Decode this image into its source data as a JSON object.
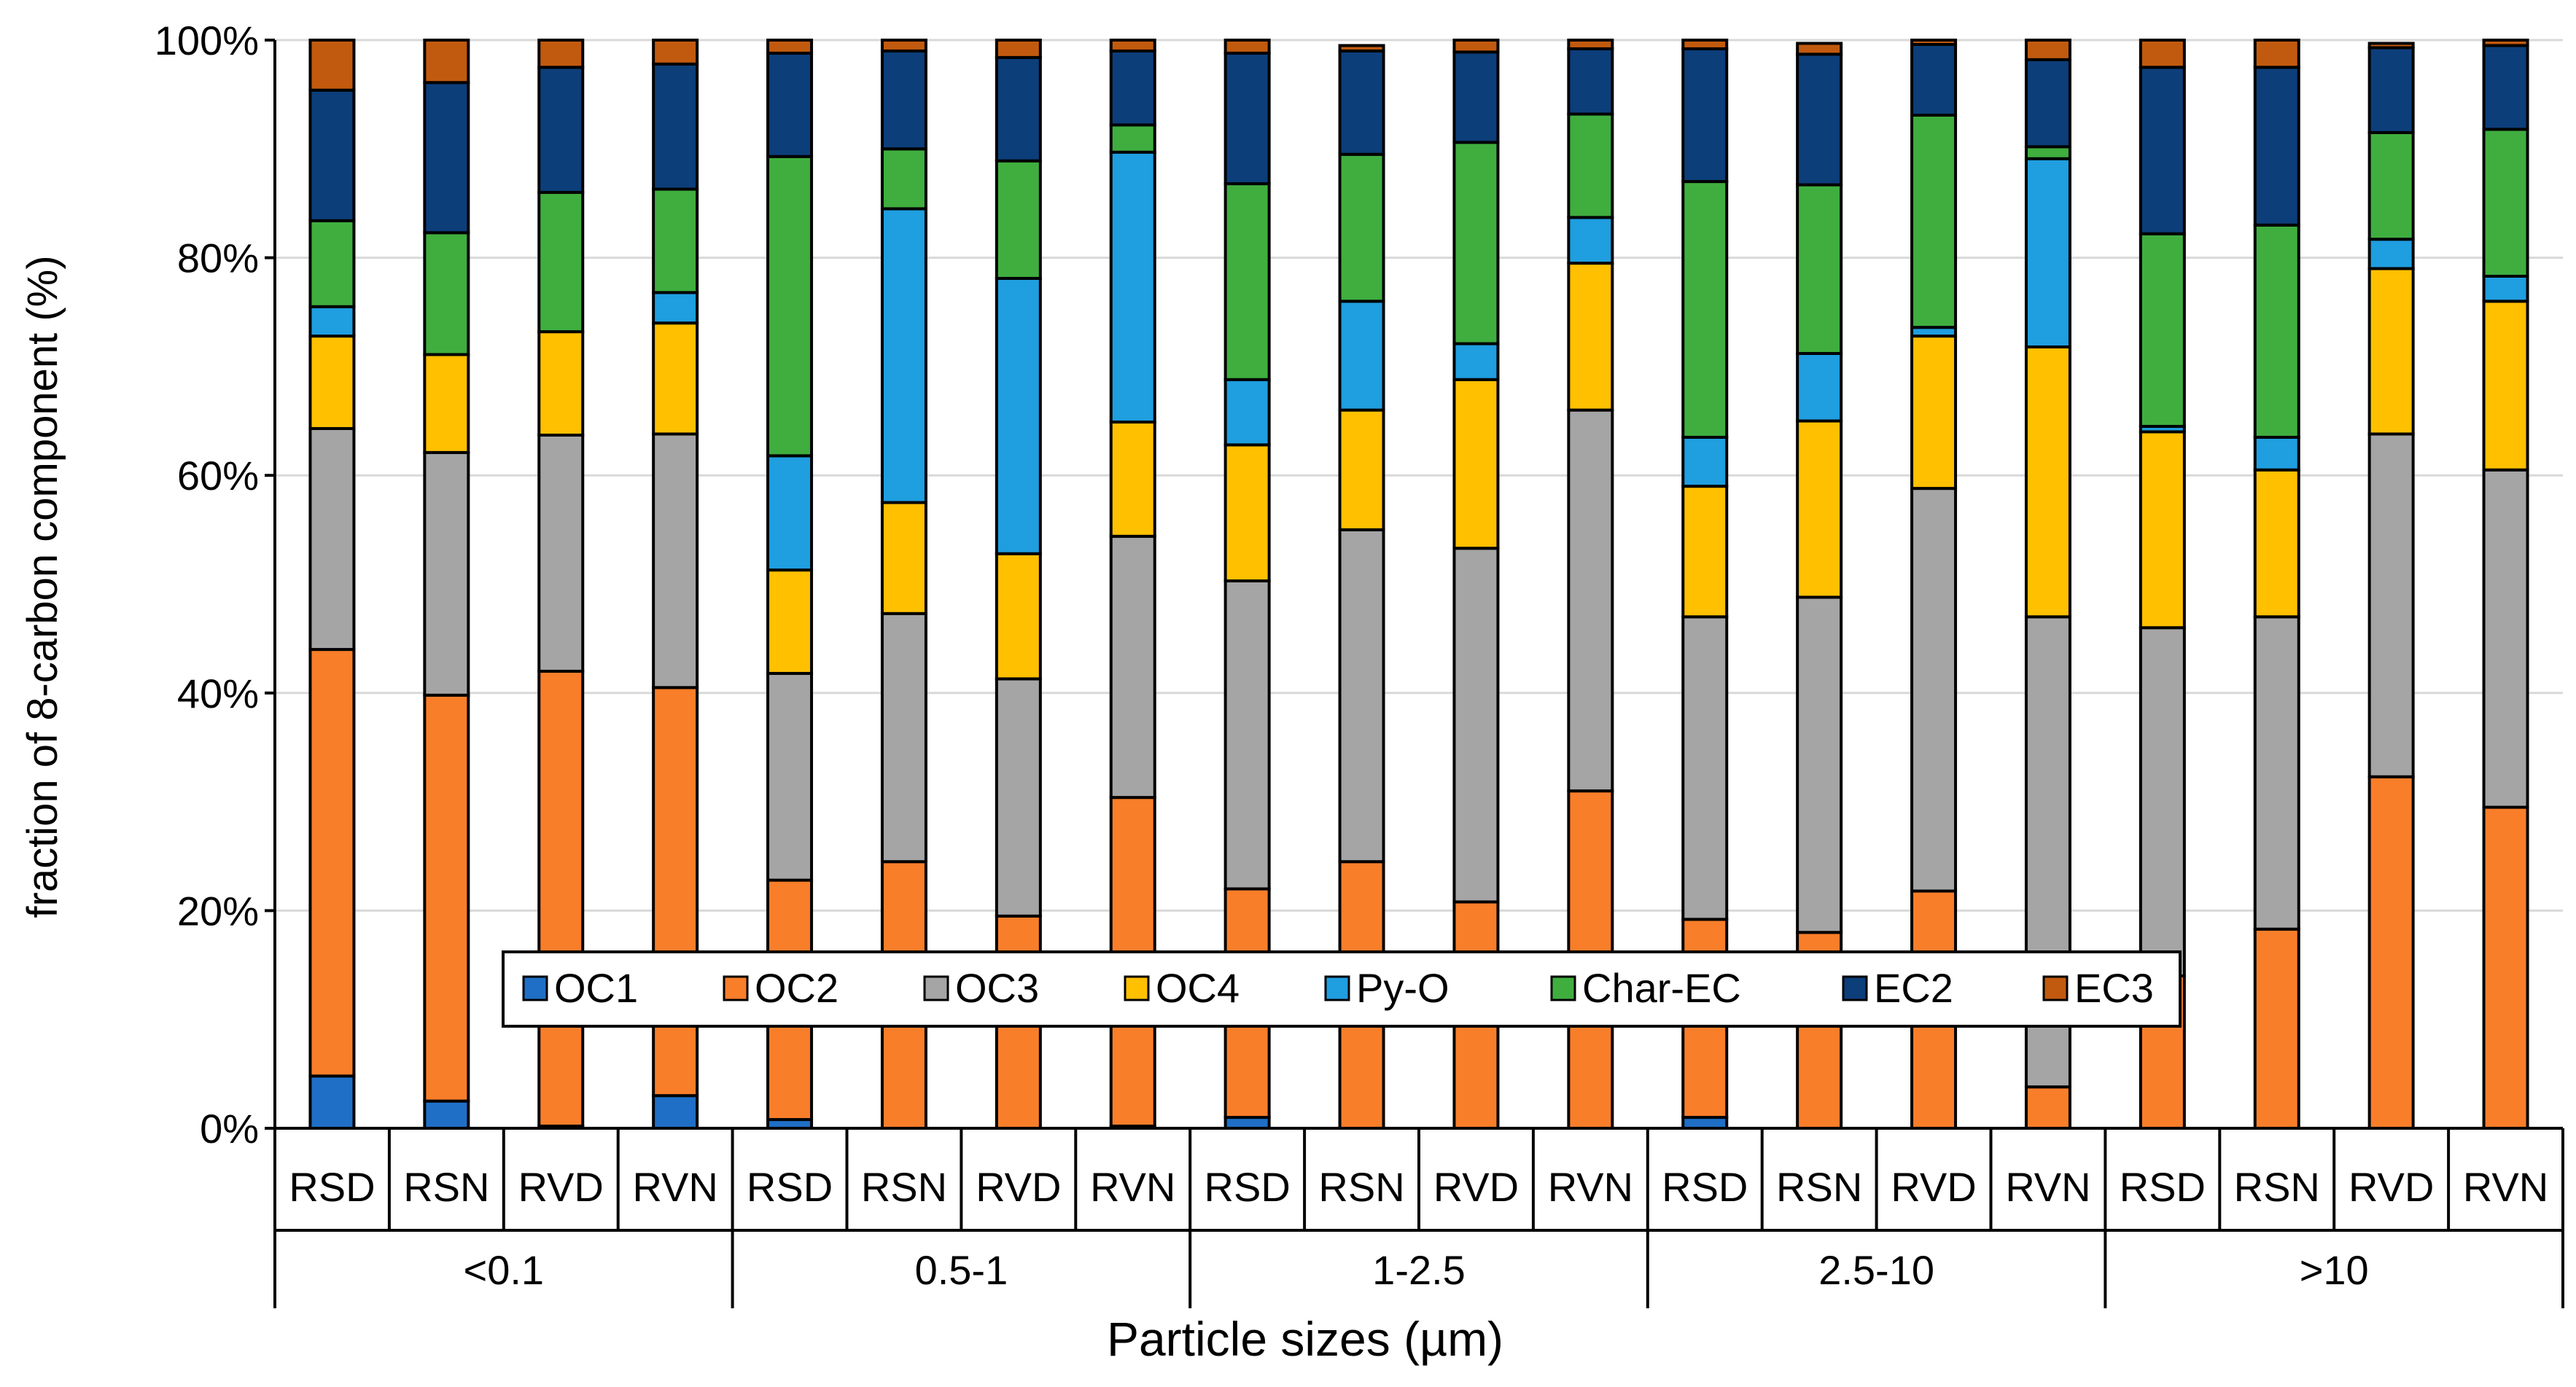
{
  "chart_data": {
    "type": "bar",
    "stacked": true,
    "normalized_percent": true,
    "title": "",
    "xlabel": "Particle sizes (µm)",
    "ylabel": "fraction of 8-carbon component (%)",
    "ylim": [
      0,
      100
    ],
    "yticks": [
      "0%",
      "20%",
      "40%",
      "60%",
      "80%",
      "100%"
    ],
    "ytick_values": [
      0,
      20,
      40,
      60,
      80,
      100
    ],
    "grid": true,
    "legend_position": "bottom-center inside plot",
    "groups": [
      "<0.1",
      "0.5-1",
      "1-2.5",
      "2.5-10",
      ">10"
    ],
    "categories": [
      "RSD",
      "RSN",
      "RVD",
      "RVN",
      "RSD",
      "RSN",
      "RVD",
      "RVN",
      "RSD",
      "RSN",
      "RVD",
      "RVN",
      "RSD",
      "RSN",
      "RVD",
      "RVN",
      "RSD",
      "RSN",
      "RVD",
      "RVN"
    ],
    "series": [
      {
        "name": "OC1",
        "color": "#1f6fc6",
        "values": [
          4.8,
          2.5,
          0.2,
          3.0,
          0.8,
          0.0,
          0.0,
          0.2,
          1.0,
          0.0,
          0.0,
          0.0,
          1.0,
          0.0,
          0.0,
          0.0,
          0.0,
          0.0,
          0.0,
          0.0
        ]
      },
      {
        "name": "OC2",
        "color": "#f97e2a",
        "values": [
          39.2,
          37.3,
          41.8,
          37.5,
          22.0,
          24.5,
          19.5,
          30.2,
          21.0,
          24.5,
          20.8,
          31.0,
          18.2,
          18.0,
          21.8,
          3.8,
          14.0,
          18.3,
          32.3,
          29.5
        ]
      },
      {
        "name": "OC3",
        "color": "#a5a5a5",
        "values": [
          20.3,
          22.3,
          21.7,
          23.3,
          19.0,
          22.8,
          21.8,
          24.0,
          28.3,
          30.5,
          32.5,
          35.0,
          27.8,
          30.8,
          37.0,
          43.2,
          32.0,
          28.7,
          31.5,
          31.0
        ]
      },
      {
        "name": "OC4",
        "color": "#ffc000",
        "values": [
          8.5,
          9.0,
          9.5,
          10.2,
          9.5,
          10.2,
          11.5,
          10.5,
          12.5,
          11.0,
          15.5,
          13.5,
          12.0,
          16.2,
          14.0,
          24.8,
          18.0,
          13.5,
          15.2,
          15.5
        ]
      },
      {
        "name": "Py-O",
        "color": "#1f9ee0",
        "values": [
          2.7,
          0.0,
          0.0,
          2.8,
          10.5,
          27.0,
          25.3,
          24.8,
          6.0,
          10.0,
          3.3,
          4.2,
          4.5,
          6.2,
          0.8,
          17.3,
          0.5,
          3.0,
          2.7,
          2.3
        ]
      },
      {
        "name": "Char-EC",
        "color": "#3fae3f",
        "values": [
          7.9,
          11.2,
          12.8,
          9.5,
          27.5,
          5.5,
          10.8,
          2.5,
          18.0,
          13.5,
          18.5,
          9.5,
          23.5,
          15.5,
          19.5,
          1.1,
          17.7,
          19.5,
          9.8,
          13.5
        ]
      },
      {
        "name": "EC2",
        "color": "#0c3e7a",
        "values": [
          12.0,
          13.8,
          11.5,
          11.5,
          9.5,
          9.0,
          9.5,
          6.8,
          12.0,
          9.5,
          8.3,
          6.0,
          12.2,
          12.0,
          6.5,
          8.0,
          15.3,
          14.5,
          7.8,
          7.7
        ]
      },
      {
        "name": "EC3",
        "color": "#c15a0e",
        "values": [
          4.6,
          3.9,
          2.5,
          2.2,
          1.2,
          1.0,
          1.6,
          1.0,
          1.2,
          0.5,
          1.1,
          0.8,
          0.8,
          1.0,
          0.4,
          1.8,
          2.5,
          2.5,
          0.4,
          0.5
        ]
      }
    ]
  }
}
